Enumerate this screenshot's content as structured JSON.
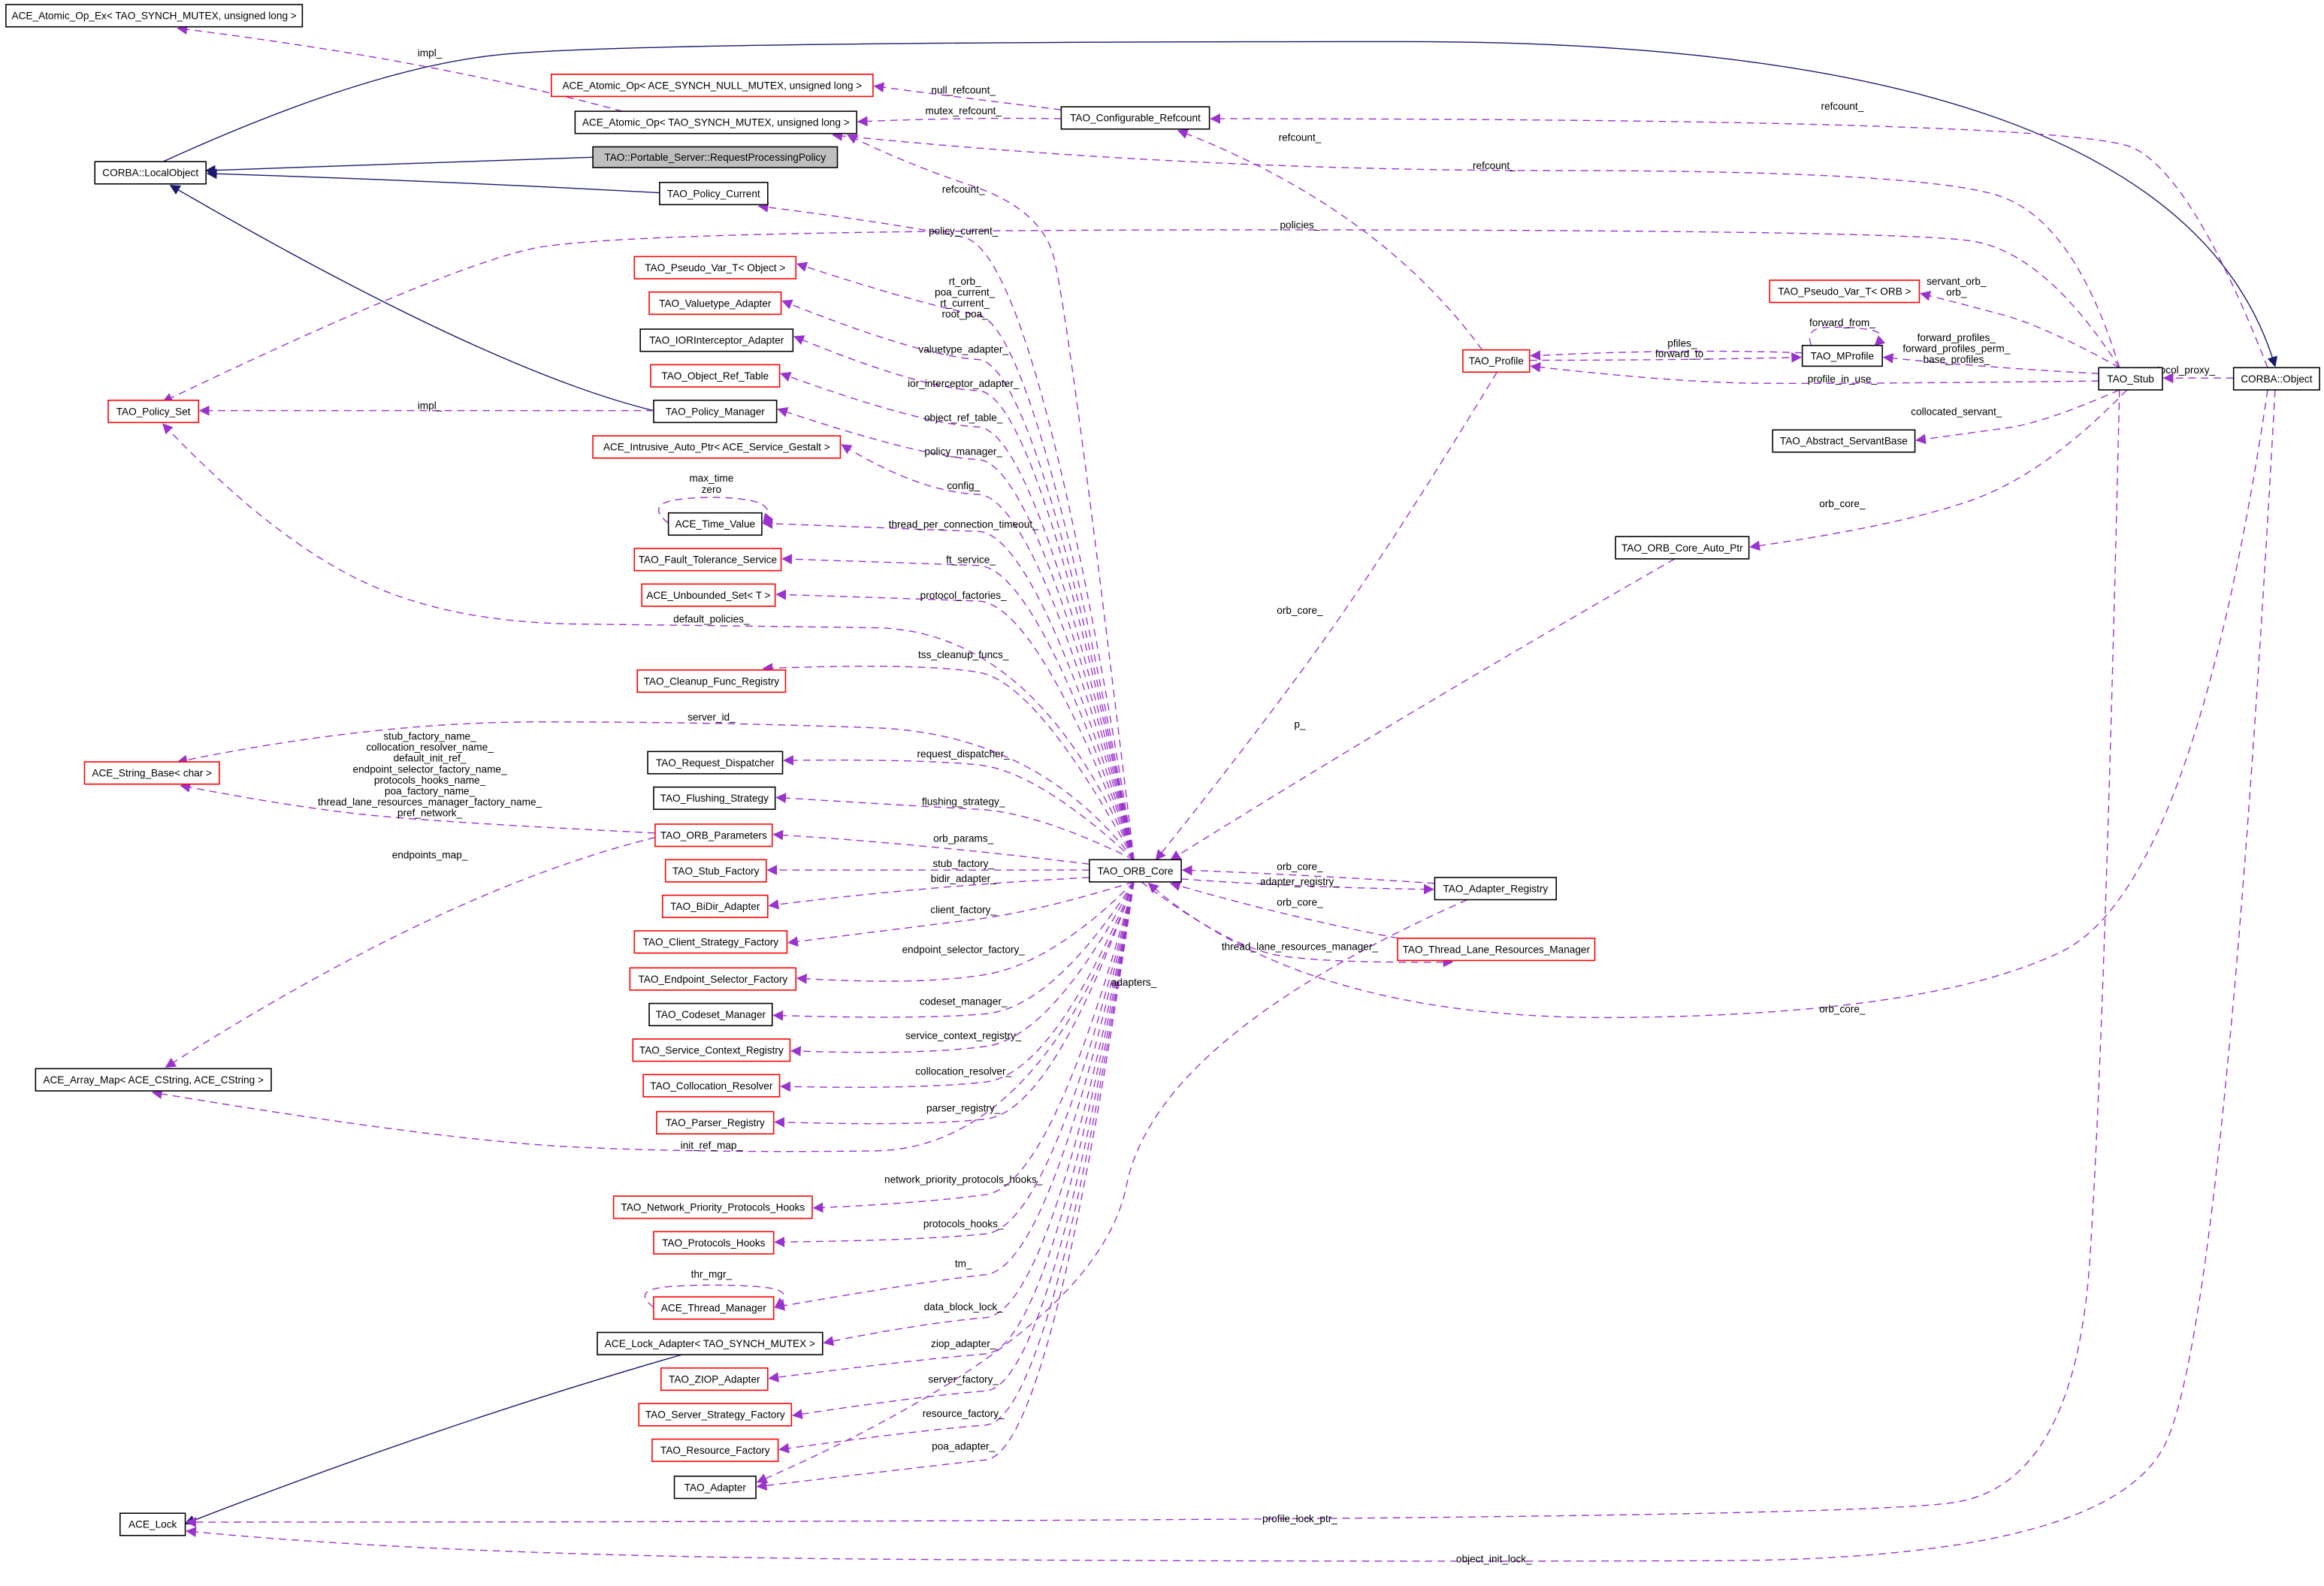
{
  "colors": {
    "collaboration_edge": "#9a32cd",
    "inheritance_edge": "#191970",
    "undocumented_border": "#ff0000",
    "documented_border": "#000000",
    "focus_fill": "#bfbfbf"
  },
  "nodes": [
    {
      "id": "atomic_op_ex",
      "label": "ACE_Atomic_Op_Ex< TAO_SYNCH_MUTEX, unsigned long >",
      "border": "black"
    },
    {
      "id": "atomic_op_null",
      "label": "ACE_Atomic_Op< ACE_SYNCH_NULL_MUTEX, unsigned long >",
      "border": "red"
    },
    {
      "id": "atomic_op",
      "label": "ACE_Atomic_Op< TAO_SYNCH_MUTEX, unsigned long >",
      "border": "black"
    },
    {
      "id": "rpp",
      "label": "TAO::Portable_Server::RequestProcessingPolicy",
      "border": "black",
      "focus": true
    },
    {
      "id": "local_object",
      "label": "CORBA::LocalObject",
      "border": "black"
    },
    {
      "id": "config_refcount",
      "label": "TAO_Configurable_Refcount",
      "border": "black"
    },
    {
      "id": "policy_current",
      "label": "TAO_Policy_Current",
      "border": "black"
    },
    {
      "id": "pseudo_obj",
      "label": "TAO_Pseudo_Var_T< Object >",
      "border": "red"
    },
    {
      "id": "valuetype",
      "label": "TAO_Valuetype_Adapter",
      "border": "red"
    },
    {
      "id": "ior",
      "label": "TAO_IORInterceptor_Adapter",
      "border": "black"
    },
    {
      "id": "objref",
      "label": "TAO_Object_Ref_Table",
      "border": "red"
    },
    {
      "id": "policy_manager",
      "label": "TAO_Policy_Manager",
      "border": "black"
    },
    {
      "id": "policy_set",
      "label": "TAO_Policy_Set",
      "border": "red"
    },
    {
      "id": "intrusive",
      "label": "ACE_Intrusive_Auto_Ptr< ACE_Service_Gestalt >",
      "border": "red"
    },
    {
      "id": "time_value",
      "label": "ACE_Time_Value",
      "border": "black"
    },
    {
      "id": "ft",
      "label": "TAO_Fault_Tolerance_Service",
      "border": "red"
    },
    {
      "id": "unbounded",
      "label": "ACE_Unbounded_Set< T >",
      "border": "red"
    },
    {
      "id": "cleanup",
      "label": "TAO_Cleanup_Func_Registry",
      "border": "red"
    },
    {
      "id": "string_base",
      "label": "ACE_String_Base< char >",
      "border": "red"
    },
    {
      "id": "req_disp",
      "label": "TAO_Request_Dispatcher",
      "border": "black"
    },
    {
      "id": "flushing",
      "label": "TAO_Flushing_Strategy",
      "border": "black"
    },
    {
      "id": "orb_params",
      "label": "TAO_ORB_Parameters",
      "border": "red"
    },
    {
      "id": "stub_factory",
      "label": "TAO_Stub_Factory",
      "border": "red"
    },
    {
      "id": "bidir",
      "label": "TAO_BiDir_Adapter",
      "border": "red"
    },
    {
      "id": "client_strat",
      "label": "TAO_Client_Strategy_Factory",
      "border": "red"
    },
    {
      "id": "endpoint_sel",
      "label": "TAO_Endpoint_Selector_Factory",
      "border": "red"
    },
    {
      "id": "codeset",
      "label": "TAO_Codeset_Manager",
      "border": "black"
    },
    {
      "id": "svc_ctx",
      "label": "TAO_Service_Context_Registry",
      "border": "red"
    },
    {
      "id": "colloc",
      "label": "TAO_Collocation_Resolver",
      "border": "red"
    },
    {
      "id": "parser",
      "label": "TAO_Parser_Registry",
      "border": "red"
    },
    {
      "id": "array_map",
      "label": "ACE_Array_Map< ACE_CString, ACE_CString >",
      "border": "black"
    },
    {
      "id": "net_prio",
      "label": "TAO_Network_Priority_Protocols_Hooks",
      "border": "red"
    },
    {
      "id": "proto_hooks",
      "label": "TAO_Protocols_Hooks",
      "border": "red"
    },
    {
      "id": "thread_mgr",
      "label": "ACE_Thread_Manager",
      "border": "red"
    },
    {
      "id": "lock_adapter",
      "label": "ACE_Lock_Adapter< TAO_SYNCH_MUTEX >",
      "border": "black"
    },
    {
      "id": "ziop",
      "label": "TAO_ZIOP_Adapter",
      "border": "red"
    },
    {
      "id": "server_strat",
      "label": "TAO_Server_Strategy_Factory",
      "border": "red"
    },
    {
      "id": "resource",
      "label": "TAO_Resource_Factory",
      "border": "red"
    },
    {
      "id": "adapter",
      "label": "TAO_Adapter",
      "border": "black"
    },
    {
      "id": "ace_lock",
      "label": "ACE_Lock",
      "border": "black"
    },
    {
      "id": "orb_core",
      "label": "TAO_ORB_Core",
      "border": "black"
    },
    {
      "id": "adapter_reg",
      "label": "TAO_Adapter_Registry",
      "border": "black"
    },
    {
      "id": "tlrm",
      "label": "TAO_Thread_Lane_Resources_Manager",
      "border": "red"
    },
    {
      "id": "profile",
      "label": "TAO_Profile",
      "border": "red"
    },
    {
      "id": "mprofile",
      "label": "TAO_MProfile",
      "border": "black"
    },
    {
      "id": "pseudo_orb",
      "label": "TAO_Pseudo_Var_T< ORB >",
      "border": "red"
    },
    {
      "id": "stub",
      "label": "TAO_Stub",
      "border": "black"
    },
    {
      "id": "servant_base",
      "label": "TAO_Abstract_ServantBase",
      "border": "black"
    },
    {
      "id": "orb_core_auto",
      "label": "TAO_ORB_Core_Auto_Ptr",
      "border": "black"
    },
    {
      "id": "corba_object",
      "label": "CORBA::Object",
      "border": "black"
    }
  ],
  "edges": [
    {
      "from": "local_object",
      "to": "corba_object",
      "kind": "inheritance",
      "labels": []
    },
    {
      "from": "rpp",
      "to": "local_object",
      "kind": "inheritance",
      "labels": []
    },
    {
      "from": "policy_current",
      "to": "local_object",
      "kind": "inheritance",
      "labels": []
    },
    {
      "from": "policy_manager",
      "to": "local_object",
      "kind": "inheritance",
      "labels": []
    },
    {
      "from": "lock_adapter",
      "to": "ace_lock",
      "kind": "inheritance",
      "labels": []
    },
    {
      "from": "atomic_op",
      "to": "atomic_op_ex",
      "kind": "usage",
      "labels": [
        "impl_"
      ]
    },
    {
      "from": "config_refcount",
      "to": "atomic_op_null",
      "kind": "usage",
      "labels": [
        "null_refcount_"
      ]
    },
    {
      "from": "config_refcount",
      "to": "atomic_op",
      "kind": "usage",
      "labels": [
        "mutex_refcount_"
      ]
    },
    {
      "from": "profile",
      "to": "config_refcount",
      "kind": "usage",
      "labels": [
        "refcount_"
      ]
    },
    {
      "from": "stub",
      "to": "atomic_op",
      "kind": "usage",
      "labels": [
        "refcount_"
      ]
    },
    {
      "from": "corba_object",
      "to": "config_refcount",
      "kind": "usage",
      "labels": [
        "refcount_"
      ]
    },
    {
      "from": "orb_core",
      "to": "atomic_op",
      "kind": "usage",
      "labels": [
        "refcount_"
      ]
    },
    {
      "from": "orb_core",
      "to": "policy_current",
      "kind": "usage",
      "labels": [
        "policy_current_"
      ]
    },
    {
      "from": "stub",
      "to": "policy_set",
      "kind": "usage",
      "labels": [
        "policies_"
      ]
    },
    {
      "from": "orb_core",
      "to": "pseudo_obj",
      "kind": "usage",
      "labels": [
        "rt_orb_",
        "poa_current_",
        "rt_current_",
        "root_poa_"
      ]
    },
    {
      "from": "orb_core",
      "to": "valuetype",
      "kind": "usage",
      "labels": [
        "valuetype_adapter_"
      ]
    },
    {
      "from": "orb_core",
      "to": "ior",
      "kind": "usage",
      "labels": [
        "ior_interceptor_adapter_"
      ]
    },
    {
      "from": "orb_core",
      "to": "objref",
      "kind": "usage",
      "labels": [
        "object_ref_table_"
      ]
    },
    {
      "from": "orb_core",
      "to": "policy_manager",
      "kind": "usage",
      "labels": [
        "policy_manager_"
      ]
    },
    {
      "from": "orb_core",
      "to": "intrusive",
      "kind": "usage",
      "labels": [
        "config_"
      ]
    },
    {
      "from": "orb_core",
      "to": "time_value",
      "kind": "usage",
      "labels": [
        "thread_per_connection_timeout_"
      ]
    },
    {
      "from": "time_value",
      "to": "time_value",
      "kind": "usage",
      "labels": [
        "max_time",
        "zero"
      ]
    },
    {
      "from": "orb_core",
      "to": "ft",
      "kind": "usage",
      "labels": [
        "ft_service_"
      ]
    },
    {
      "from": "orb_core",
      "to": "unbounded",
      "kind": "usage",
      "labels": [
        "protocol_factories_"
      ]
    },
    {
      "from": "orb_core",
      "to": "policy_set",
      "kind": "usage",
      "labels": [
        "default_policies_"
      ]
    },
    {
      "from": "policy_manager",
      "to": "policy_set",
      "kind": "usage",
      "labels": [
        "impl_"
      ]
    },
    {
      "from": "orb_core",
      "to": "cleanup",
      "kind": "usage",
      "labels": [
        "tss_cleanup_funcs_"
      ]
    },
    {
      "from": "orb_core",
      "to": "string_base",
      "kind": "usage",
      "labels": [
        "server_id_"
      ]
    },
    {
      "from": "orb_params",
      "to": "string_base",
      "kind": "usage",
      "labels": [
        "stub_factory_name_",
        "collocation_resolver_name_",
        "default_init_ref_",
        "endpoint_selector_factory_name_",
        "protocols_hooks_name_",
        "poa_factory_name_",
        "thread_lane_resources_manager_factory_name_",
        "pref_network_"
      ]
    },
    {
      "from": "orb_params",
      "to": "array_map",
      "kind": "usage",
      "labels": [
        "endpoints_map_"
      ]
    },
    {
      "from": "orb_core",
      "to": "req_disp",
      "kind": "usage",
      "labels": [
        "request_dispatcher_"
      ]
    },
    {
      "from": "orb_core",
      "to": "flushing",
      "kind": "usage",
      "labels": [
        "flushing_strategy_"
      ]
    },
    {
      "from": "orb_core",
      "to": "orb_params",
      "kind": "usage",
      "labels": [
        "orb_params_"
      ]
    },
    {
      "from": "orb_core",
      "to": "stub_factory",
      "kind": "usage",
      "labels": [
        "stub_factory_"
      ]
    },
    {
      "from": "orb_core",
      "to": "bidir",
      "kind": "usage",
      "labels": [
        "bidir_adapter_"
      ]
    },
    {
      "from": "orb_core",
      "to": "client_strat",
      "kind": "usage",
      "labels": [
        "client_factory_"
      ]
    },
    {
      "from": "orb_core",
      "to": "endpoint_sel",
      "kind": "usage",
      "labels": [
        "endpoint_selector_factory_"
      ]
    },
    {
      "from": "orb_core",
      "to": "codeset",
      "kind": "usage",
      "labels": [
        "codeset_manager_"
      ]
    },
    {
      "from": "orb_core",
      "to": "svc_ctx",
      "kind": "usage",
      "labels": [
        "service_context_registry_"
      ]
    },
    {
      "from": "orb_core",
      "to": "colloc",
      "kind": "usage",
      "labels": [
        "collocation_resolver_"
      ]
    },
    {
      "from": "orb_core",
      "to": "parser",
      "kind": "usage",
      "labels": [
        "parser_registry_"
      ]
    },
    {
      "from": "orb_core",
      "to": "array_map",
      "kind": "usage",
      "labels": [
        "init_ref_map_"
      ]
    },
    {
      "from": "orb_core",
      "to": "net_prio",
      "kind": "usage",
      "labels": [
        "network_priority_protocols_hooks_"
      ]
    },
    {
      "from": "orb_core",
      "to": "proto_hooks",
      "kind": "usage",
      "labels": [
        "protocols_hooks_"
      ]
    },
    {
      "from": "orb_core",
      "to": "thread_mgr",
      "kind": "usage",
      "labels": [
        "tm_"
      ]
    },
    {
      "from": "thread_mgr",
      "to": "thread_mgr",
      "kind": "usage",
      "labels": [
        "thr_mgr_"
      ]
    },
    {
      "from": "orb_core",
      "to": "lock_adapter",
      "kind": "usage",
      "labels": [
        "data_block_lock_"
      ]
    },
    {
      "from": "orb_core",
      "to": "ziop",
      "kind": "usage",
      "labels": [
        "ziop_adapter_"
      ]
    },
    {
      "from": "orb_core",
      "to": "server_strat",
      "kind": "usage",
      "labels": [
        "server_factory_"
      ]
    },
    {
      "from": "orb_core",
      "to": "resource",
      "kind": "usage",
      "labels": [
        "resource_factory_"
      ]
    },
    {
      "from": "orb_core",
      "to": "adapter",
      "kind": "usage",
      "labels": [
        "poa_adapter_"
      ]
    },
    {
      "from": "adapter_reg",
      "to": "adapter",
      "kind": "usage",
      "labels": [
        "adapters_"
      ]
    },
    {
      "from": "stub",
      "to": "ace_lock",
      "kind": "usage",
      "labels": [
        "profile_lock_ptr_"
      ]
    },
    {
      "from": "corba_object",
      "to": "ace_lock",
      "kind": "usage",
      "labels": [
        "object_init_lock_"
      ]
    },
    {
      "from": "profile",
      "to": "orb_core",
      "kind": "usage",
      "labels": [
        "orb_core_"
      ]
    },
    {
      "from": "orb_core_auto",
      "to": "orb_core",
      "kind": "usage",
      "labels": [
        "p_"
      ]
    },
    {
      "from": "adapter_reg",
      "to": "orb_core",
      "kind": "usage",
      "labels": [
        "orb_core_"
      ]
    },
    {
      "from": "orb_core",
      "to": "adapter_reg",
      "kind": "usage",
      "labels": [
        "adapter_registry_"
      ]
    },
    {
      "from": "tlrm",
      "to": "orb_core",
      "kind": "usage",
      "labels": [
        "orb_core_"
      ]
    },
    {
      "from": "orb_core",
      "to": "tlrm",
      "kind": "usage",
      "labels": [
        "thread_lane_resources_manager_"
      ]
    },
    {
      "from": "corba_object",
      "to": "orb_core",
      "kind": "usage",
      "labels": [
        "orb_core_"
      ]
    },
    {
      "from": "stub",
      "to": "pseudo_orb",
      "kind": "usage",
      "labels": [
        "servant_orb_",
        "orb_"
      ]
    },
    {
      "from": "mprofile",
      "to": "profile",
      "kind": "usage",
      "labels": [
        "pfiles_"
      ]
    },
    {
      "from": "profile",
      "to": "mprofile",
      "kind": "usage",
      "labels": [
        "forward_to_"
      ]
    },
    {
      "from": "mprofile",
      "to": "mprofile",
      "kind": "usage",
      "labels": [
        "forward_from_"
      ]
    },
    {
      "from": "stub",
      "to": "mprofile",
      "kind": "usage",
      "labels": [
        "forward_profiles_",
        "forward_profiles_perm_",
        "base_profiles_"
      ]
    },
    {
      "from": "stub",
      "to": "profile",
      "kind": "usage",
      "labels": [
        "profile_in_use_"
      ]
    },
    {
      "from": "stub",
      "to": "servant_base",
      "kind": "usage",
      "labels": [
        "collocated_servant_"
      ]
    },
    {
      "from": "stub",
      "to": "orb_core_auto",
      "kind": "usage",
      "labels": [
        "orb_core_"
      ]
    },
    {
      "from": "corba_object",
      "to": "stub",
      "kind": "usage",
      "labels": [
        "protocol_proxy_"
      ]
    }
  ]
}
